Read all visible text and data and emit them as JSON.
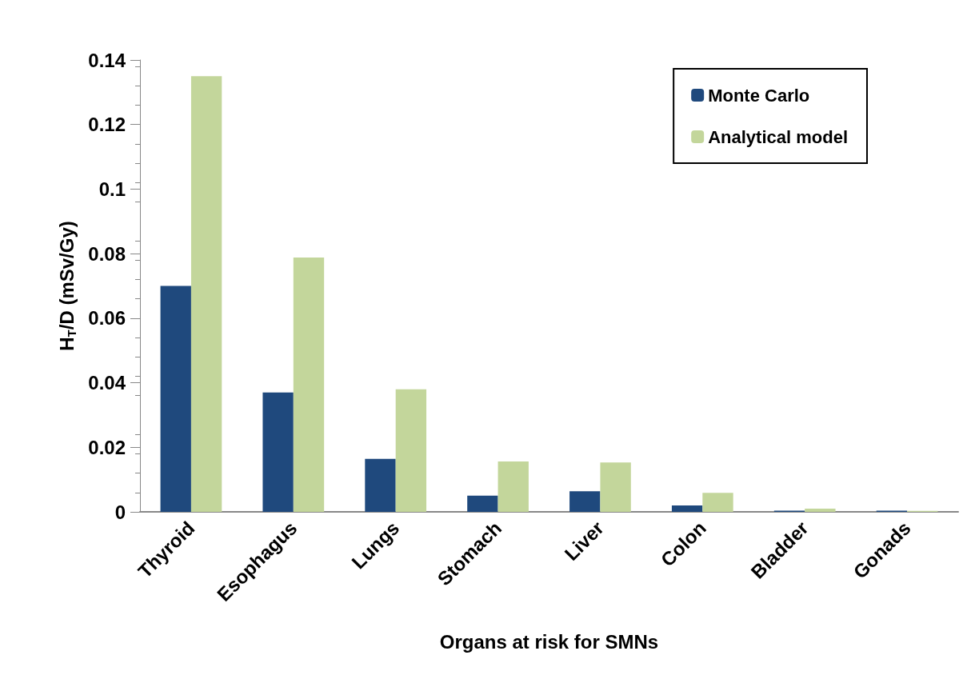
{
  "chart_data": {
    "type": "bar",
    "xlabel": "Organs at risk for SMNs",
    "ylabel": "H$_{T}$/D (mSv/Gy)",
    "categories": [
      "Thyroid",
      "Esophagus",
      "Lungs",
      "Stomach",
      "Liver",
      "Colon",
      "Bladder",
      "Gonads"
    ],
    "series": [
      {
        "name": "Monte Carlo",
        "color": "#1f497d",
        "values": [
          0.07,
          0.037,
          0.0164,
          0.005,
          0.0064,
          0.002,
          0.0004,
          0.0004
        ]
      },
      {
        "name": "Analytical model",
        "color": "#c3d69b",
        "values": [
          0.135,
          0.0788,
          0.038,
          0.0156,
          0.0153,
          0.0059,
          0.001,
          0.0003
        ]
      }
    ],
    "ylim": [
      0,
      0.14
    ],
    "yticks": [
      0,
      0.02,
      0.04,
      0.06,
      0.08,
      0.1,
      0.12,
      0.14
    ],
    "grid": false,
    "legend": "top right"
  }
}
